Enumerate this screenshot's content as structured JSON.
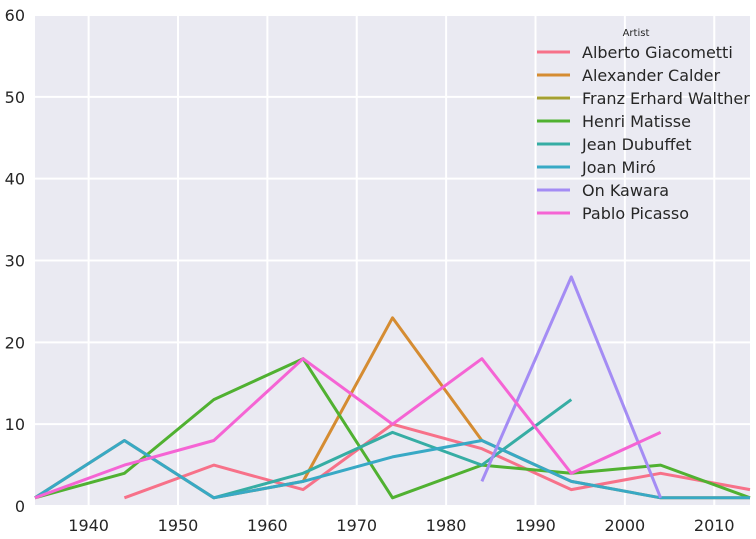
{
  "chart_data": {
    "type": "line",
    "title": "",
    "xlabel": "",
    "ylabel": "",
    "xlim": [
      1934,
      2014
    ],
    "ylim": [
      0,
      60
    ],
    "x_ticks": [
      1940,
      1950,
      1960,
      1970,
      1980,
      1990,
      2000,
      2010
    ],
    "y_ticks": [
      0,
      10,
      20,
      30,
      40,
      50,
      60
    ],
    "x_tick_labels": [
      "1940",
      "1950",
      "1960",
      "1970",
      "1980",
      "1990",
      "2000",
      "2010"
    ],
    "y_tick_labels": [
      "0",
      "10",
      "20",
      "30",
      "40",
      "50",
      "60"
    ],
    "grid": true,
    "background": "#eaeaf2",
    "legend": {
      "title": "Artist",
      "placement": "top-right"
    },
    "series": [
      {
        "name": "Alberto Giacometti",
        "color": "#f77189",
        "points": [
          [
            1944,
            1
          ],
          [
            1954,
            5
          ],
          [
            1964,
            2
          ],
          [
            1974,
            10
          ],
          [
            1984,
            7
          ],
          [
            1994,
            2
          ],
          [
            2004,
            4
          ],
          [
            2014,
            2
          ]
        ]
      },
      {
        "name": "Alexander Calder",
        "color": "#d58c32",
        "points": [
          [
            1934,
            1
          ],
          [
            1944,
            8
          ],
          [
            1954,
            1
          ],
          [
            1964,
            3
          ],
          [
            1974,
            23
          ],
          [
            1984,
            8
          ],
          [
            1994,
            3
          ],
          [
            2004,
            1
          ],
          [
            2014,
            1
          ]
        ]
      },
      {
        "name": "Franz Erhard Walther",
        "color": "#a4a031",
        "points": []
      },
      {
        "name": "Henri Matisse",
        "color": "#50b131",
        "points": [
          [
            1934,
            1
          ],
          [
            1944,
            4
          ],
          [
            1954,
            13
          ],
          [
            1964,
            18
          ],
          [
            1974,
            1
          ],
          [
            1984,
            5
          ],
          [
            1994,
            4
          ],
          [
            2004,
            5
          ],
          [
            2014,
            1
          ]
        ]
      },
      {
        "name": "Jean Dubuffet",
        "color": "#36ada4",
        "points": [
          [
            1954,
            1
          ],
          [
            1964,
            4
          ],
          [
            1974,
            9
          ],
          [
            1984,
            5
          ],
          [
            1994,
            13
          ]
        ]
      },
      {
        "name": "Joan Miró",
        "color": "#38a9c5",
        "points": [
          [
            1934,
            1
          ],
          [
            1944,
            8
          ],
          [
            1954,
            1
          ],
          [
            1964,
            3
          ],
          [
            1974,
            6
          ],
          [
            1984,
            8
          ],
          [
            1994,
            3
          ],
          [
            2004,
            1
          ],
          [
            2014,
            1
          ]
        ]
      },
      {
        "name": "On Kawara",
        "color": "#a48cf4",
        "points": [
          [
            1984,
            3
          ],
          [
            1994,
            28
          ],
          [
            2004,
            1
          ]
        ]
      },
      {
        "name": "Pablo Picasso",
        "color": "#f564d4",
        "points": [
          [
            1934,
            1
          ],
          [
            1944,
            5
          ],
          [
            1954,
            8
          ],
          [
            1964,
            18
          ],
          [
            1974,
            10
          ],
          [
            1984,
            18
          ],
          [
            1994,
            4
          ],
          [
            2004,
            9
          ]
        ]
      }
    ]
  }
}
